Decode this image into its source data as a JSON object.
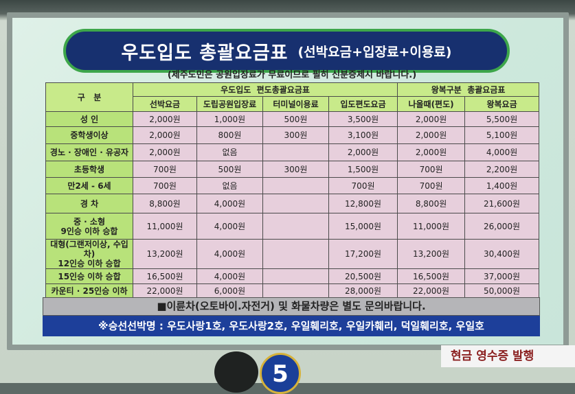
{
  "title": {
    "main": "우도입도 총괄요금표",
    "sub": "(선박요금+입장료+이용료)"
  },
  "notice": "(제주도민은 공원입장료가 무료이므로 필히 신분증제시 바랍니다.)",
  "table": {
    "category_header": "구   분",
    "group1_header": "우도입도  편도총괄요금표",
    "group2_header": "왕복구분  총괄요금표",
    "columns": [
      "선박요금",
      "도립공원입장료",
      "터미널이용료",
      "입도편도요금",
      "나올때(편도)",
      "왕복요금"
    ],
    "rows": [
      {
        "label": "성   인",
        "values": [
          "2,000원",
          "1,000원",
          "500원",
          "3,500원",
          "2,000원",
          "5,500원"
        ]
      },
      {
        "label": "중학생이상",
        "values": [
          "2,000원",
          "800원",
          "300원",
          "3,100원",
          "2,000원",
          "5,100원"
        ]
      },
      {
        "label": "경노 · 장애인 · 유공자",
        "values": [
          "2,000원",
          "없음",
          "",
          "2,000원",
          "2,000원",
          "4,000원"
        ]
      },
      {
        "label": "초등학생",
        "values": [
          "700원",
          "500원",
          "300원",
          "1,500원",
          "700원",
          "2,200원"
        ]
      },
      {
        "label": "만2세 - 6세",
        "values": [
          "700원",
          "없음",
          "",
          "700원",
          "700원",
          "1,400원"
        ]
      },
      {
        "label": "경   차",
        "values": [
          "8,800원",
          "4,000원",
          "",
          "12,800원",
          "8,800원",
          "21,600원"
        ]
      },
      {
        "label": "중 · 소형\n9인승 이하 승합",
        "values": [
          "11,000원",
          "4,000원",
          "",
          "15,000원",
          "11,000원",
          "26,000원"
        ]
      },
      {
        "label": "대형(그랜저이상, 수입차)\n12인승 이하 승합",
        "values": [
          "13,200원",
          "4,000원",
          "",
          "17,200원",
          "13,200원",
          "30,400원"
        ]
      },
      {
        "label": "15인승 이하 승합",
        "values": [
          "16,500원",
          "4,000원",
          "",
          "20,500원",
          "16,500원",
          "37,000원"
        ]
      },
      {
        "label": "카운티 · 25인승 이하",
        "values": [
          "22,000원",
          "6,000원",
          "",
          "28,000원",
          "22,000원",
          "50,000원"
        ]
      }
    ]
  },
  "note_motorcycle": "■이륜차(오토바이.자전거) 및 화물차량은 별도 문의바랍니다.",
  "note_ships": "※승선선박명 : 우도사랑1호, 우도사랑2호, 우일훼리호, 우일카훼리, 덕일훼리호, 우일호",
  "receipt_sign": "현금 영수증 발행",
  "window_number": "5",
  "colors": {
    "title_bg": "#17306f",
    "header_green": "#c8ea8a",
    "value_pink": "#e7cfdc",
    "ships_bar": "#1d3f9a",
    "receipt_text": "#8a1e1e"
  }
}
